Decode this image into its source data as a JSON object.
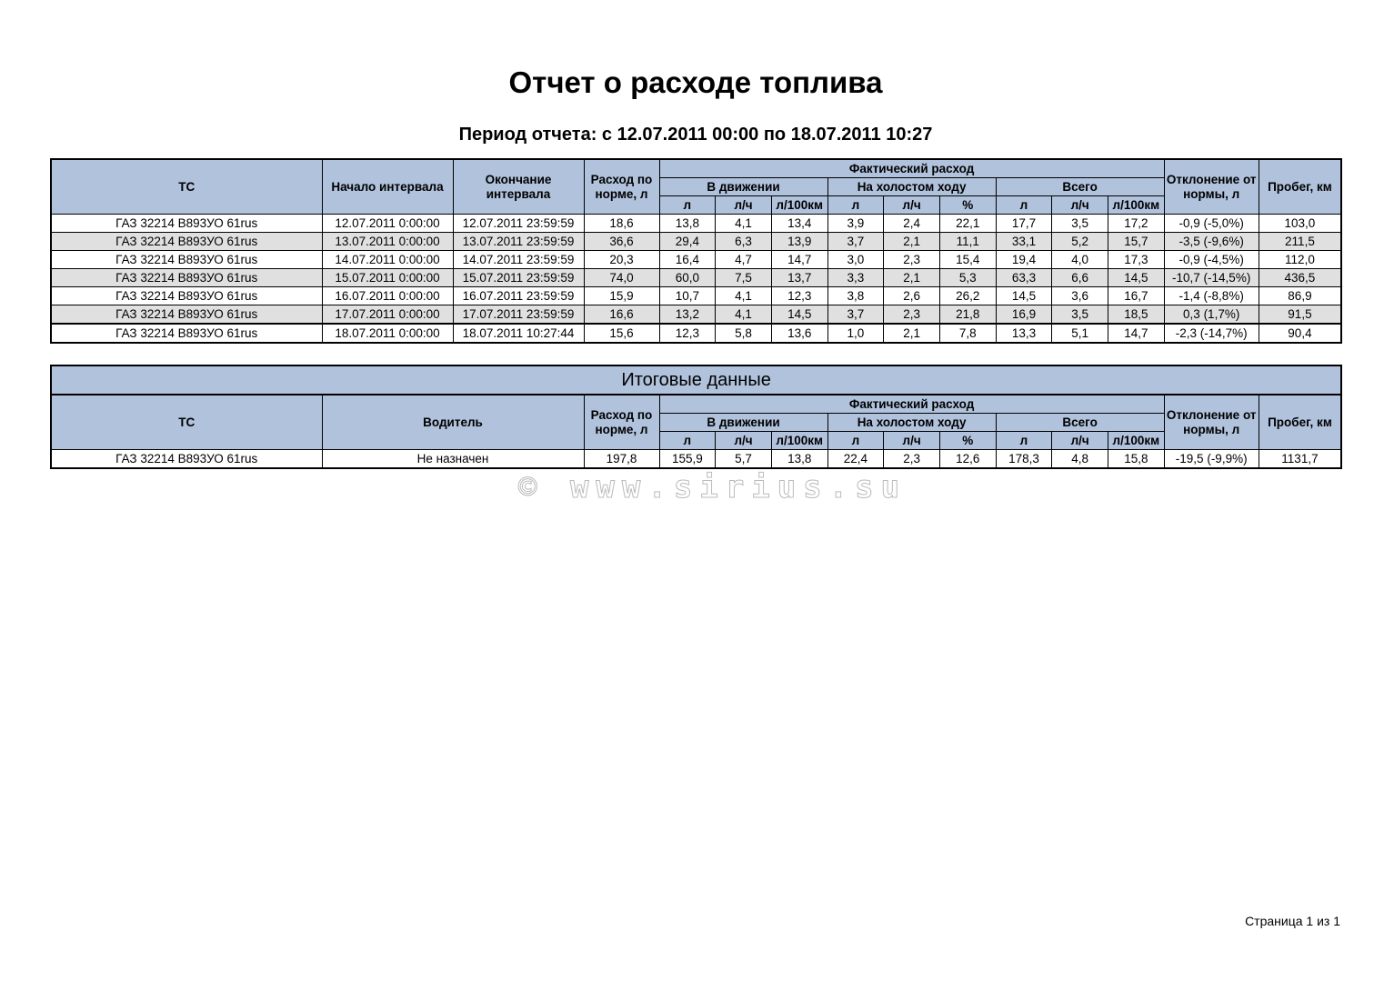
{
  "title": "Отчет о расходе топлива",
  "period": "Период отчета: с 12.07.2011 00:00 по 18.07.2011 10:27",
  "headers": {
    "vehicle": "ТС",
    "start": "Начало интервала",
    "end": "Окончание интервала",
    "norm": "Расход по норме, л",
    "actual": "Фактический расход",
    "moving": "В движении",
    "idle": "На холостом ходу",
    "total": "Всего",
    "l": "л",
    "lh": "л/ч",
    "l100": "л/100км",
    "pct": "%",
    "deviation": "Отклонение от нормы, л",
    "mileage": "Пробег, км",
    "driver": "Водитель"
  },
  "rows": [
    [
      "ГАЗ 32214 В893УО 61rus",
      "12.07.2011 0:00:00",
      "12.07.2011 23:59:59",
      "18,6",
      "13,8",
      "4,1",
      "13,4",
      "3,9",
      "2,4",
      "22,1",
      "17,7",
      "3,5",
      "17,2",
      "-0,9 (-5,0%)",
      "103,0"
    ],
    [
      "ГАЗ 32214 В893УО 61rus",
      "13.07.2011 0:00:00",
      "13.07.2011 23:59:59",
      "36,6",
      "29,4",
      "6,3",
      "13,9",
      "3,7",
      "2,1",
      "11,1",
      "33,1",
      "5,2",
      "15,7",
      "-3,5 (-9,6%)",
      "211,5"
    ],
    [
      "ГАЗ 32214 В893УО 61rus",
      "14.07.2011 0:00:00",
      "14.07.2011 23:59:59",
      "20,3",
      "16,4",
      "4,7",
      "14,7",
      "3,0",
      "2,3",
      "15,4",
      "19,4",
      "4,0",
      "17,3",
      "-0,9 (-4,5%)",
      "112,0"
    ],
    [
      "ГАЗ 32214 В893УО 61rus",
      "15.07.2011 0:00:00",
      "15.07.2011 23:59:59",
      "74,0",
      "60,0",
      "7,5",
      "13,7",
      "3,3",
      "2,1",
      "5,3",
      "63,3",
      "6,6",
      "14,5",
      "-10,7 (-14,5%)",
      "436,5"
    ],
    [
      "ГАЗ 32214 В893УО 61rus",
      "16.07.2011 0:00:00",
      "16.07.2011 23:59:59",
      "15,9",
      "10,7",
      "4,1",
      "12,3",
      "3,8",
      "2,6",
      "26,2",
      "14,5",
      "3,6",
      "16,7",
      "-1,4 (-8,8%)",
      "86,9"
    ],
    [
      "ГАЗ 32214 В893УО 61rus",
      "17.07.2011 0:00:00",
      "17.07.2011 23:59:59",
      "16,6",
      "13,2",
      "4,1",
      "14,5",
      "3,7",
      "2,3",
      "21,8",
      "16,9",
      "3,5",
      "18,5",
      "0,3 (1,7%)",
      "91,5"
    ],
    [
      "ГАЗ 32214 В893УО 61rus",
      "18.07.2011 0:00:00",
      "18.07.2011 10:27:44",
      "15,6",
      "12,3",
      "5,8",
      "13,6",
      "1,0",
      "2,1",
      "7,8",
      "13,3",
      "5,1",
      "14,7",
      "-2,3 (-14,7%)",
      "90,4"
    ]
  ],
  "summary": {
    "title": "Итоговые данные",
    "row": [
      "ГАЗ 32214 В893УО 61rus",
      "Не назначен",
      "197,8",
      "155,9",
      "5,7",
      "13,8",
      "22,4",
      "2,3",
      "12,6",
      "178,3",
      "4,8",
      "15,8",
      "-19,5 (-9,9%)",
      "1131,7"
    ]
  },
  "watermark": "© www.sirius.su",
  "page": "Страница 1 из 1"
}
